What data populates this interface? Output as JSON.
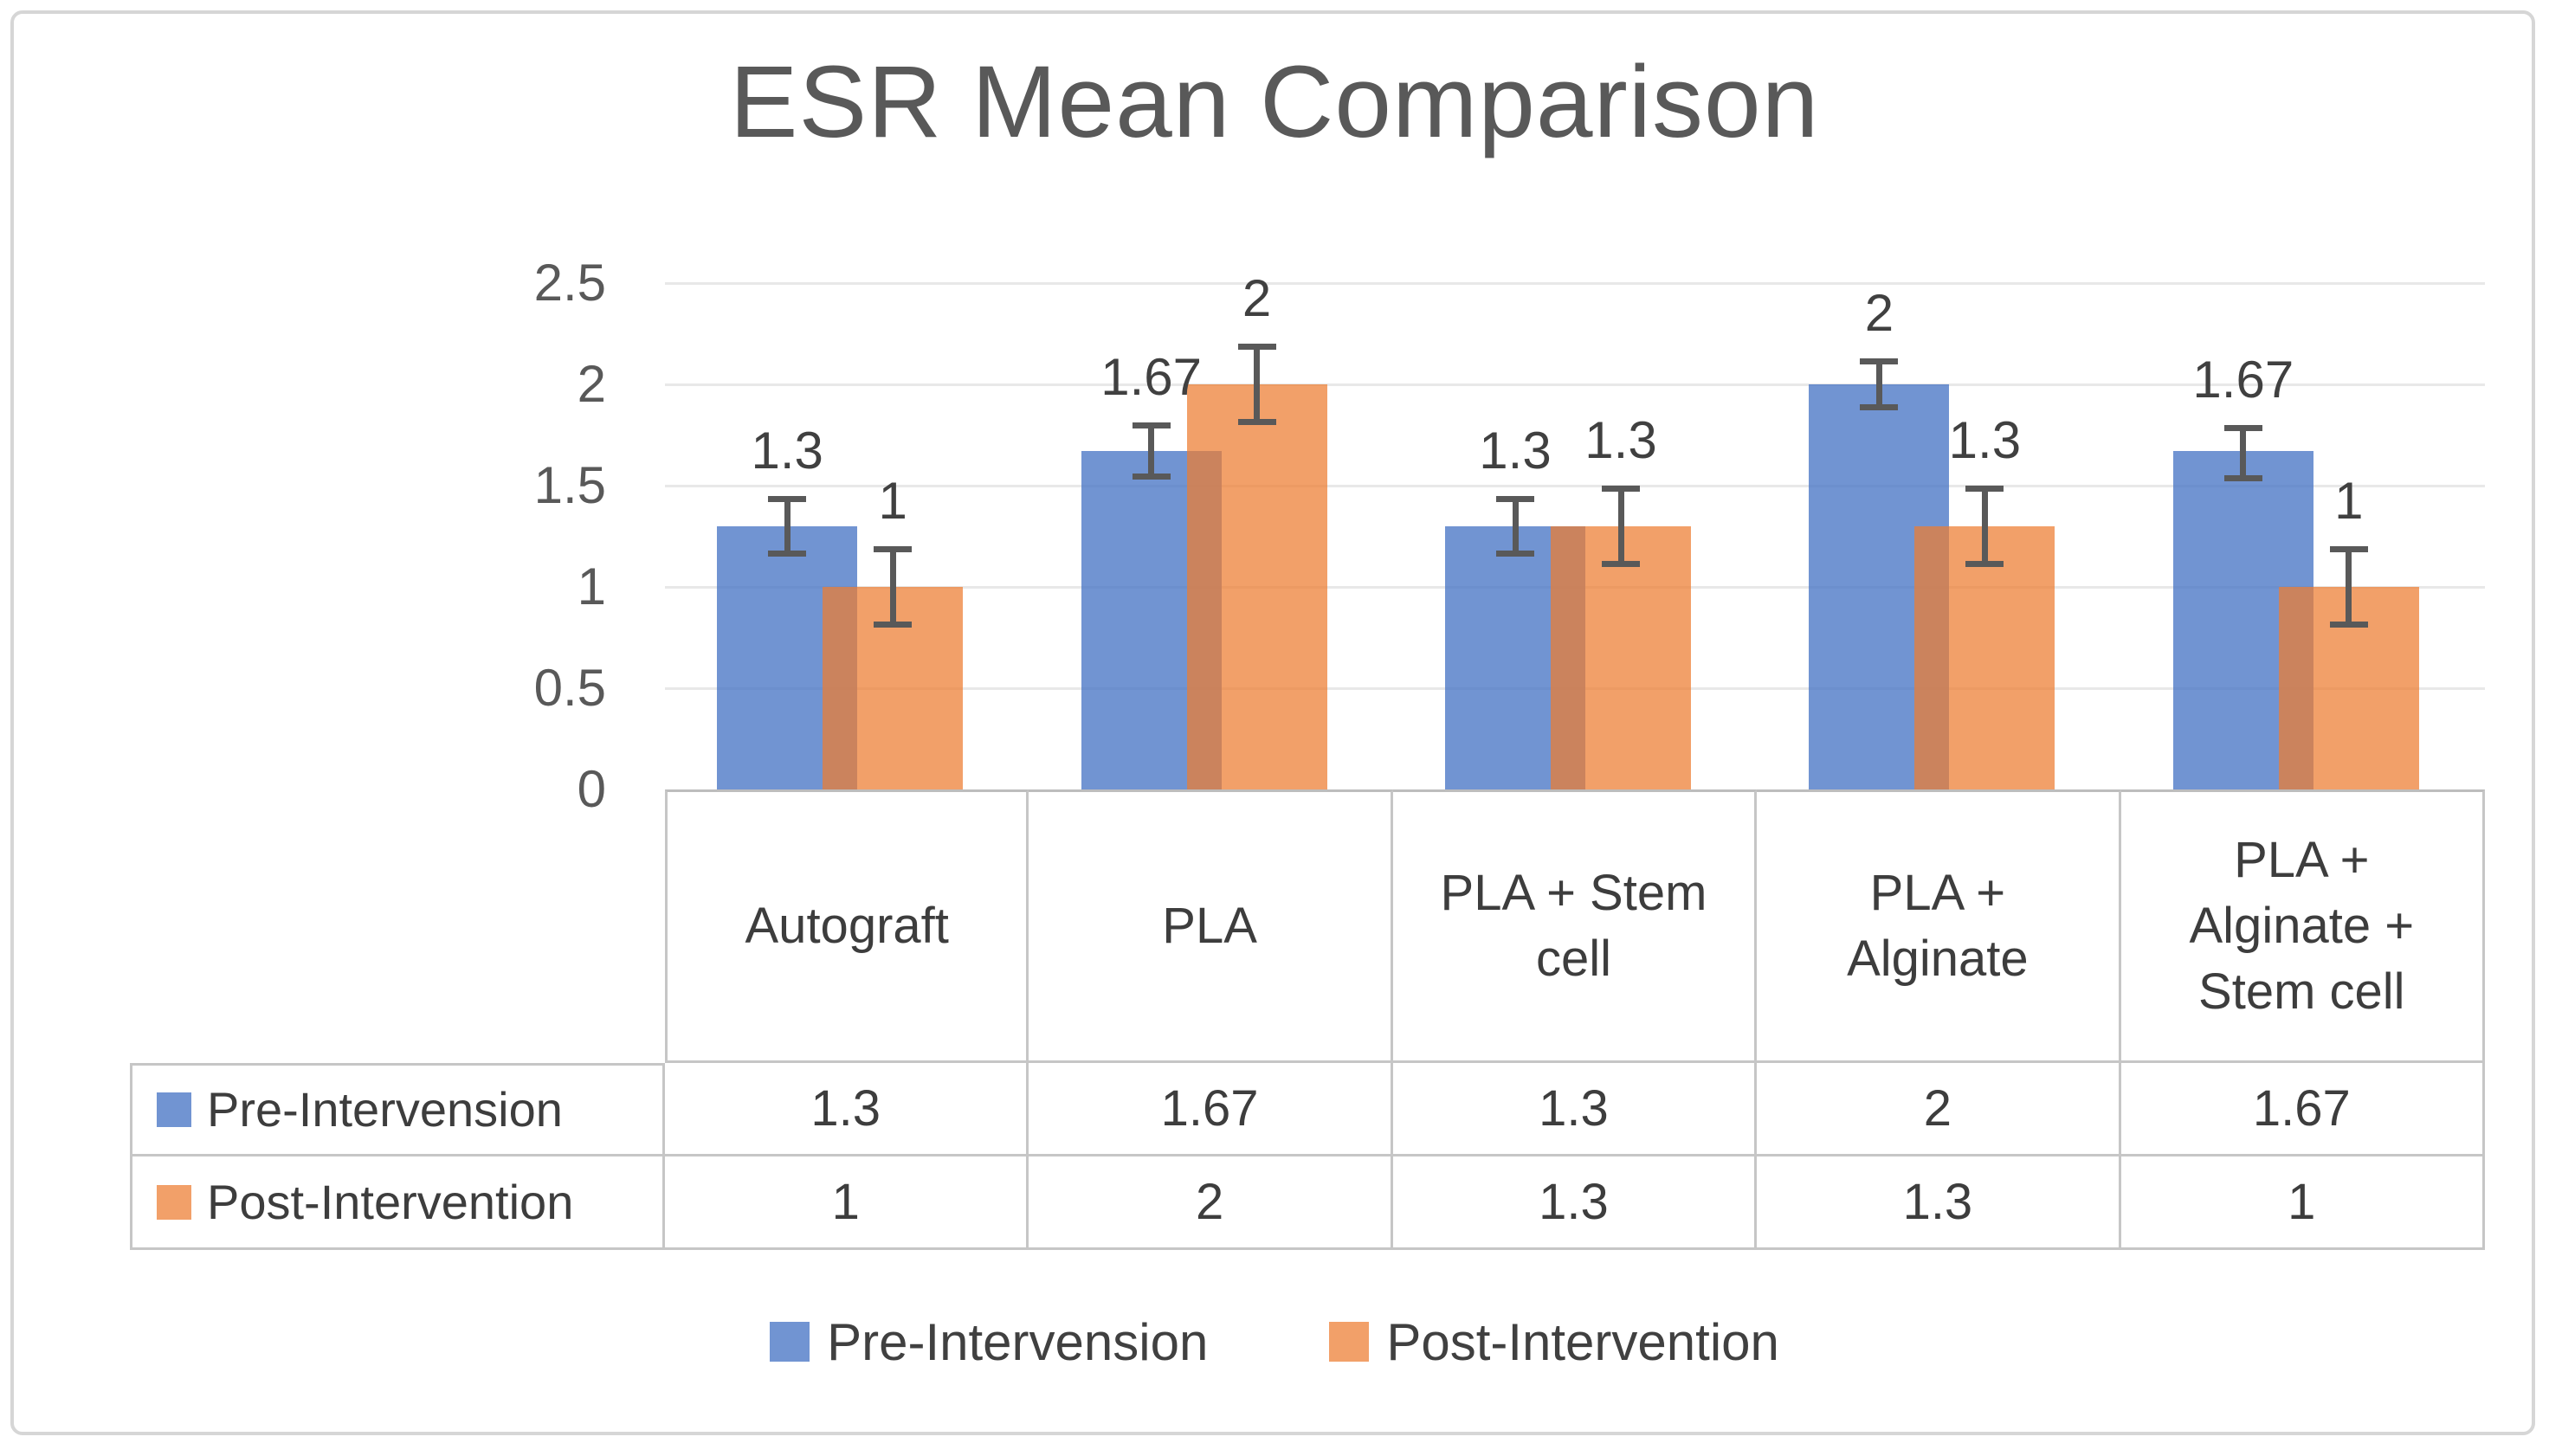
{
  "figure": {
    "title": "ESR Mean Comparison"
  },
  "chart_data": {
    "type": "bar",
    "title": "ESR Mean Comparison",
    "categories": [
      "Autograft",
      "PLA",
      "PLA + Stem cell",
      "PLA + Alginate",
      "PLA + Alginate + Stem cell"
    ],
    "series": [
      {
        "name": "Pre-Intervension",
        "color": "#4472C4",
        "fill_opacity": 0.76,
        "values": [
          1.3,
          1.67,
          1.3,
          2,
          1.67
        ],
        "labels": [
          "1.3",
          "1.67",
          "1.3",
          "2",
          "1.67"
        ],
        "error_ranges": [
          [
            1.15,
            1.45
          ],
          [
            1.53,
            1.81
          ],
          [
            1.15,
            1.45
          ],
          [
            1.87,
            2.13
          ],
          [
            1.52,
            1.8
          ]
        ]
      },
      {
        "name": "Post-Intervention",
        "color": "#ED7D31",
        "fill_opacity": 0.73,
        "values": [
          1,
          2,
          1.3,
          1.3,
          1
        ],
        "labels": [
          "1",
          "2",
          "1.3",
          "1.3",
          "1"
        ],
        "error_ranges": [
          [
            0.8,
            1.2
          ],
          [
            1.8,
            2.2
          ],
          [
            1.1,
            1.5
          ],
          [
            1.1,
            1.5
          ],
          [
            0.8,
            1.2
          ]
        ]
      }
    ],
    "y_axis": {
      "min": 0,
      "max": 2.5,
      "step": 0.5,
      "tick_labels": [
        "0",
        "0.5",
        "1",
        "1.5",
        "2",
        "2.5"
      ]
    },
    "gridlines": true,
    "error_bar_color": "#595959",
    "legend_position": "bottom"
  },
  "data_table": {
    "rows": [
      {
        "label": "Pre-Intervension",
        "swatch_color": "#4472C4",
        "values": [
          "1.3",
          "1.67",
          "1.3",
          "2",
          "1.67"
        ]
      },
      {
        "label": "Post-Intervention",
        "swatch_color": "#ED7D31",
        "values": [
          "1",
          "2",
          "1.3",
          "1.3",
          "1"
        ]
      }
    ]
  },
  "legend": {
    "items": [
      {
        "label": "Pre-Intervension",
        "color": "#4472C4",
        "fill_opacity": 0.76
      },
      {
        "label": "Post-Intervention",
        "color": "#ED7D31",
        "fill_opacity": 0.73
      }
    ]
  }
}
